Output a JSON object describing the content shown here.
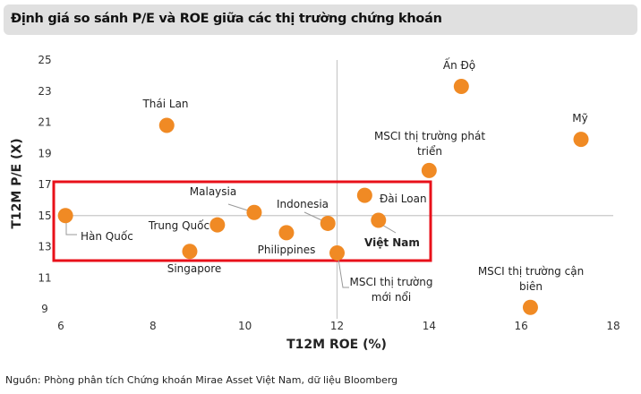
{
  "header": {
    "title": "Định giá so sánh P/E và ROE giữa các thị trường chứng khoán"
  },
  "footer": {
    "source": "Nguồn: Phòng phân tích Chứng khoán Mirae Asset Việt Nam, dữ liệu Bloomberg"
  },
  "chart_data": {
    "type": "scatter",
    "title": "Định giá so sánh P/E và ROE giữa các thị trường chứng khoán",
    "xlabel": "T12M ROE (%)",
    "ylabel": "T12M P/E (X)",
    "xlim": [
      6,
      18
    ],
    "ylim": [
      9,
      25
    ],
    "xticks": [
      "6",
      "8",
      "10",
      "12",
      "14",
      "16",
      "18"
    ],
    "yticks": [
      "9",
      "11",
      "13",
      "15",
      "17",
      "19",
      "21",
      "23",
      "25"
    ],
    "reference_lines": {
      "x": 12,
      "y": 15
    },
    "marker_color": "#f08a24",
    "highlight_box_color": "#e8101a",
    "points": [
      {
        "name": "Hàn Quốc",
        "x": 6.1,
        "y": 15.0
      },
      {
        "name": "Thái Lan",
        "x": 8.3,
        "y": 20.8
      },
      {
        "name": "Singapore",
        "x": 8.8,
        "y": 12.7
      },
      {
        "name": "Trung Quốc",
        "x": 9.4,
        "y": 14.4
      },
      {
        "name": "Malaysia",
        "x": 10.2,
        "y": 15.2
      },
      {
        "name": "Philippines",
        "x": 10.9,
        "y": 13.9
      },
      {
        "name": "Indonesia",
        "x": 11.8,
        "y": 14.5
      },
      {
        "name": "MSCI thị trường mới nổi",
        "x": 12.0,
        "y": 12.6
      },
      {
        "name": "Đài Loan",
        "x": 12.6,
        "y": 16.3
      },
      {
        "name": "Việt Nam",
        "x": 12.9,
        "y": 14.7
      },
      {
        "name": "MSCI thị trường phát triển",
        "x": 14.0,
        "y": 17.9
      },
      {
        "name": "Ấn Độ",
        "x": 14.7,
        "y": 23.3
      },
      {
        "name": "Mỹ",
        "x": 17.3,
        "y": 19.9
      },
      {
        "name": "MSCI thị trường cận biên",
        "x": 16.2,
        "y": 9.1
      }
    ]
  }
}
